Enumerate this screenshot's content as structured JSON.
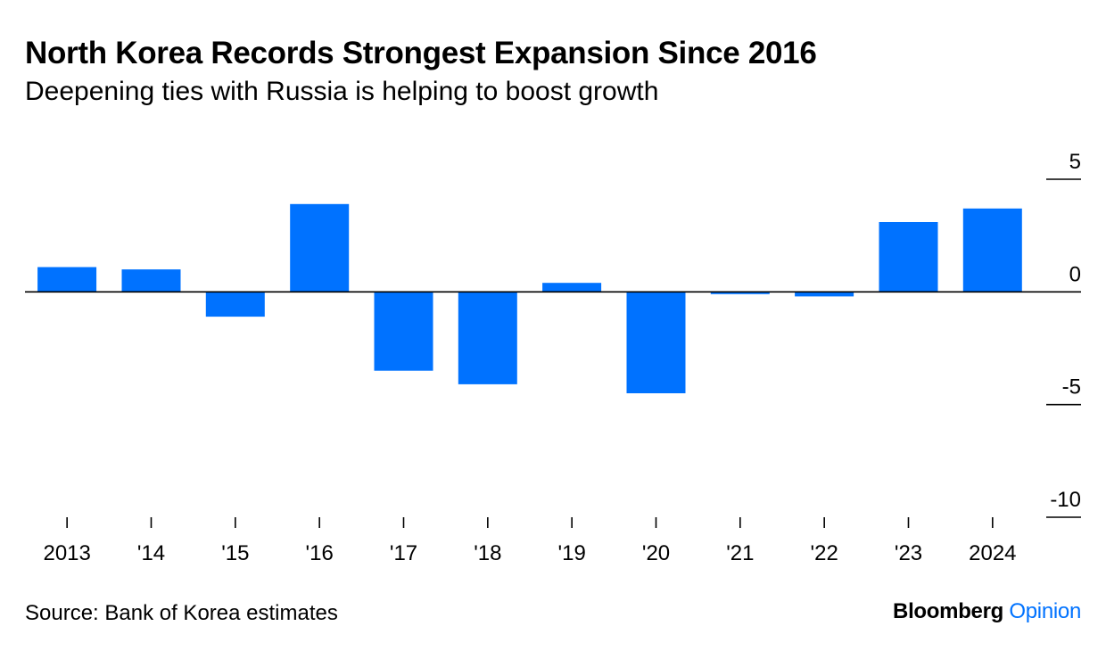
{
  "header": {
    "title": "North Korea Records Strongest Expansion Since 2016",
    "subtitle": "Deepening ties with Russia is helping to boost growth"
  },
  "footer": {
    "source": "Source: Bank of Korea estimates",
    "brand_primary": "Bloomberg",
    "brand_secondary": "Opinion"
  },
  "colors": {
    "bar": "#0072FF",
    "axis": "#000000",
    "brand_secondary": "#0072FF"
  },
  "chart_data": {
    "type": "bar",
    "title": "North Korea Records Strongest Expansion Since 2016",
    "subtitle": "Deepening ties with Russia is helping to boost growth",
    "xlabel": "",
    "ylabel": "",
    "categories": [
      "2013",
      "'14",
      "'15",
      "'16",
      "'17",
      "'18",
      "'19",
      "'20",
      "'21",
      "'22",
      "'23",
      "2024"
    ],
    "values": [
      1.1,
      1.0,
      -1.1,
      3.9,
      -3.5,
      -4.1,
      0.4,
      -4.5,
      -0.1,
      -0.2,
      3.1,
      3.7
    ],
    "ylim": [
      -10,
      5
    ],
    "yticks": [
      5,
      0,
      -5,
      -10
    ],
    "ytick_labels": [
      "5",
      "0",
      "-5",
      "-10"
    ],
    "y_axis_side": "right",
    "grid": false,
    "legend": "none"
  }
}
